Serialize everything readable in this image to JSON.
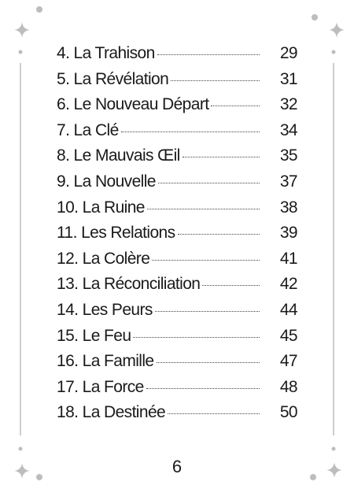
{
  "toc": {
    "entries": [
      {
        "title": "4. La Trahison",
        "page": 29
      },
      {
        "title": "5. La Révélation",
        "page": 31
      },
      {
        "title": "6. Le Nouveau Départ",
        "page": 32
      },
      {
        "title": "7. La Clé",
        "page": 34
      },
      {
        "title": "8. Le Mauvais Œil",
        "page": 35
      },
      {
        "title": "9. La Nouvelle",
        "page": 37
      },
      {
        "title": "10. La Ruine",
        "page": 38
      },
      {
        "title": "11. Les Relations",
        "page": 39
      },
      {
        "title": "12. La Colère",
        "page": 41
      },
      {
        "title": "13. La Réconciliation",
        "page": 42
      },
      {
        "title": "14. Les Peurs",
        "page": 44
      },
      {
        "title": "15. Le Feu",
        "page": 45
      },
      {
        "title": "16. La Famille",
        "page": 47
      },
      {
        "title": "17. La Force",
        "page": 48
      },
      {
        "title": "18. La Destinée",
        "page": 50
      }
    ]
  },
  "page_number": 6
}
